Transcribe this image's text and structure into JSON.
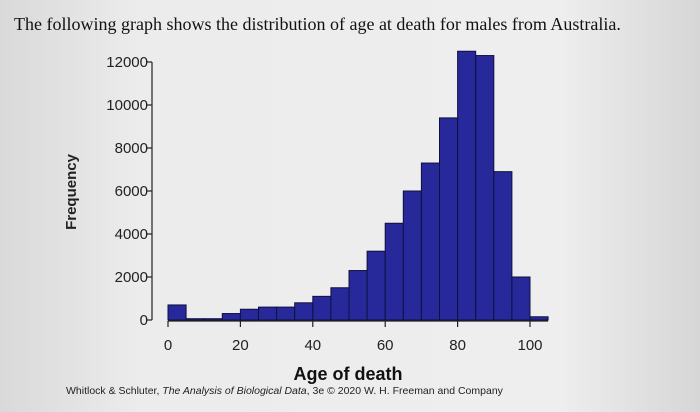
{
  "caption": "The following graph shows the distribution of age at death for males from Australia.",
  "credit": {
    "authors": "Whitlock & Schluter, ",
    "book": "The Analysis of Biological Data",
    "rest": ", 3e © 2020 W. H. Freeman and Company"
  },
  "colors": {
    "bar": "#27289a",
    "bar_edge": "#101040",
    "axis": "#222222"
  },
  "chart_data": {
    "type": "bar",
    "subtype": "histogram",
    "title": "",
    "xlabel": "Age of death",
    "ylabel": "Frequency",
    "xlim": [
      0,
      105
    ],
    "ylim": [
      0,
      12000
    ],
    "bin_width": 5,
    "x_ticks": [
      0,
      20,
      40,
      60,
      80,
      100
    ],
    "x_tick_labels": [
      "0",
      "20",
      "40",
      "60",
      "80",
      "100"
    ],
    "y_ticks": [
      0,
      2000,
      4000,
      6000,
      8000,
      10000,
      12000
    ],
    "y_tick_labels": [
      "0",
      "2000",
      "4000",
      "6000",
      "8000",
      "10000",
      "12000"
    ],
    "bin_starts": [
      0,
      5,
      10,
      15,
      20,
      25,
      30,
      35,
      40,
      45,
      50,
      55,
      60,
      65,
      70,
      75,
      80,
      85,
      90,
      95,
      100
    ],
    "values": [
      700,
      60,
      60,
      300,
      500,
      600,
      600,
      800,
      1100,
      1500,
      2300,
      3200,
      4500,
      6000,
      7300,
      9400,
      12500,
      12300,
      6900,
      2000,
      150
    ],
    "grid": false,
    "legend": "none"
  }
}
